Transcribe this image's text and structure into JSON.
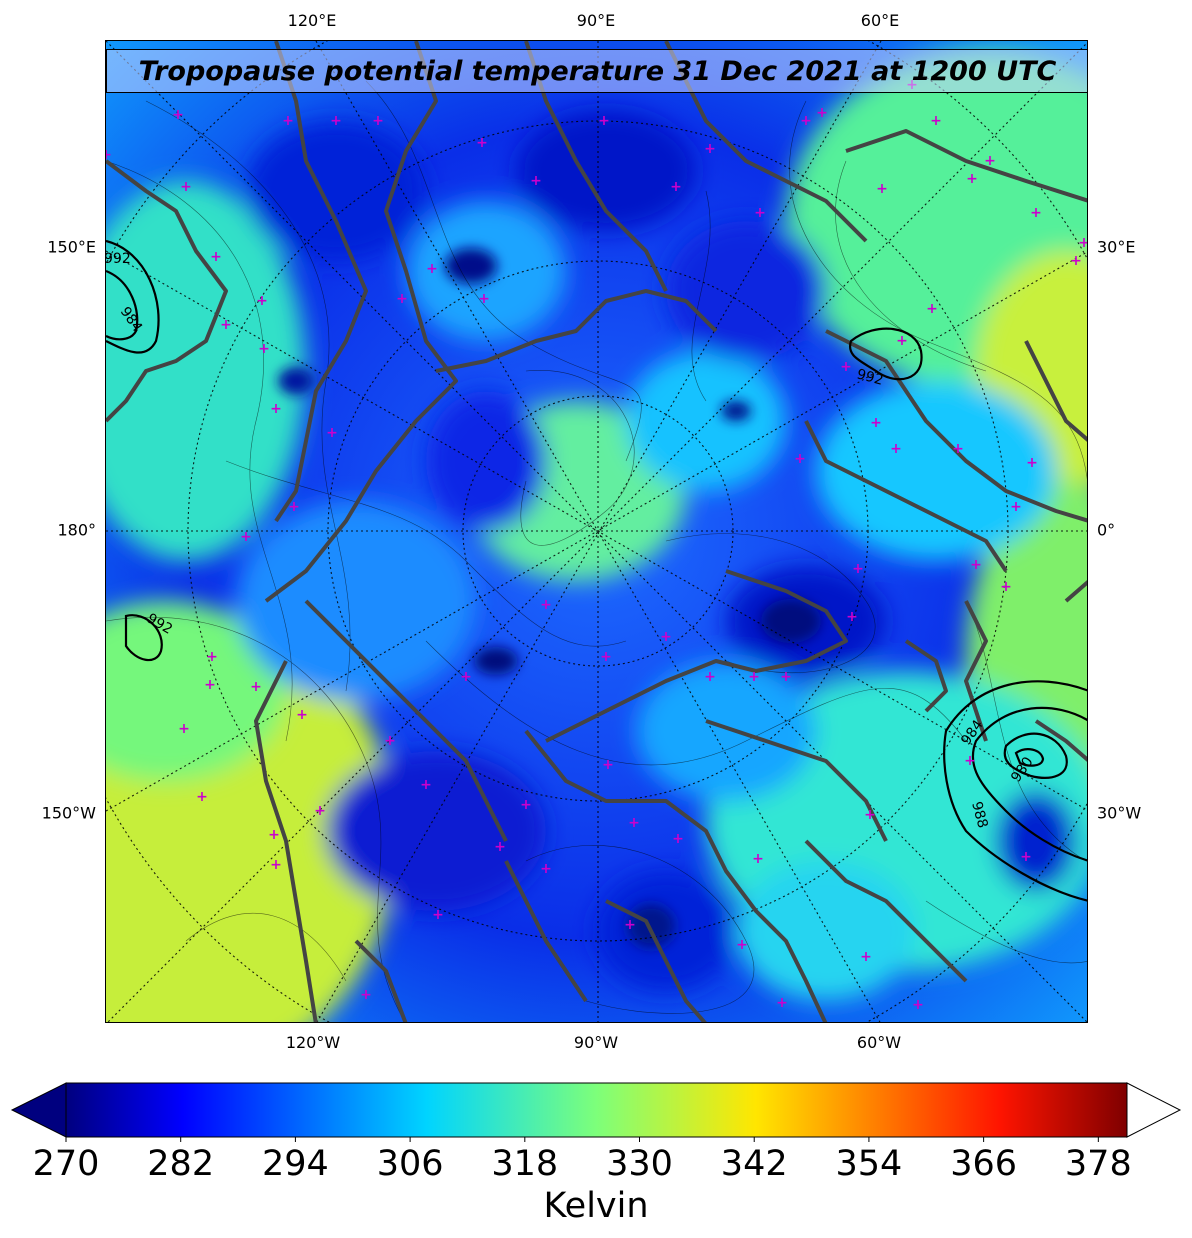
{
  "map": {
    "title": "Tropopause potential temperature 31 Dec 2021 at 1200 UTC",
    "lon_labels_top": [
      "120°E",
      "90°E",
      "60°E"
    ],
    "lon_labels_bottom": [
      "120°W",
      "90°W",
      "60°W"
    ],
    "lat_labels_left": [
      "150°E",
      "180°",
      "150°W"
    ],
    "lat_labels_right": [
      "30°E",
      "0°",
      "30°W"
    ],
    "pressure_contour_labels": [
      "992",
      "984",
      "992",
      "992",
      "984",
      "980",
      "988"
    ],
    "coast_color": "#444444",
    "marker_color": "#cc00cc"
  },
  "colorbar": {
    "ticks": [
      "270",
      "282",
      "294",
      "306",
      "318",
      "330",
      "342",
      "354",
      "366",
      "378"
    ],
    "label": "Kelvin",
    "min": 270,
    "max": 381,
    "colormap": "jet"
  }
}
